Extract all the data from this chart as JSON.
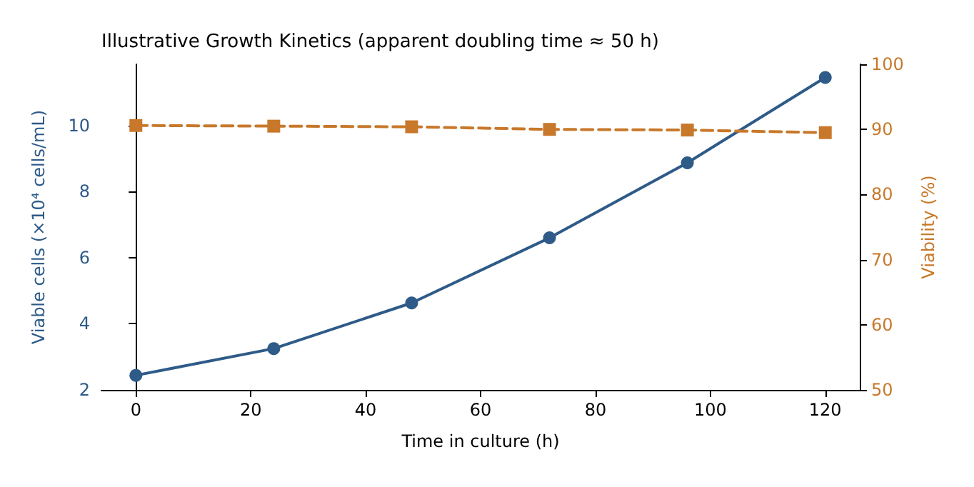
{
  "chart_data": {
    "type": "line",
    "title": "Illustrative Growth Kinetics (apparent doubling time ≈ 50 h)",
    "xlabel": "Time in culture (h)",
    "ylabel": "Viable cells (×10⁴ cells/mL)",
    "y2label": "Viability (%)",
    "x": [
      0,
      24,
      48,
      72,
      96,
      120
    ],
    "series": [
      {
        "color": "#2e5b88",
        "values": [
          2.44,
          3.25,
          4.63,
          6.6,
          8.87,
          11.45
        ],
        "marker": "circle",
        "line_style": "solid"
      },
      {
        "color": "#c8782a",
        "values": [
          90.6,
          90.5,
          90.4,
          90.0,
          89.9,
          89.5
        ],
        "axis": "y2",
        "marker": "square",
        "line_style": "dashed"
      }
    ],
    "xlim": [
      -6,
      126
    ],
    "xticks": [
      0,
      20,
      40,
      60,
      80,
      100,
      120
    ],
    "ylim": [
      2,
      11.85
    ],
    "yticks": [
      2,
      4,
      6,
      8,
      10
    ],
    "y2lim": [
      50,
      100
    ],
    "y2ticks": [
      50,
      60,
      70,
      80,
      90,
      100
    ]
  }
}
